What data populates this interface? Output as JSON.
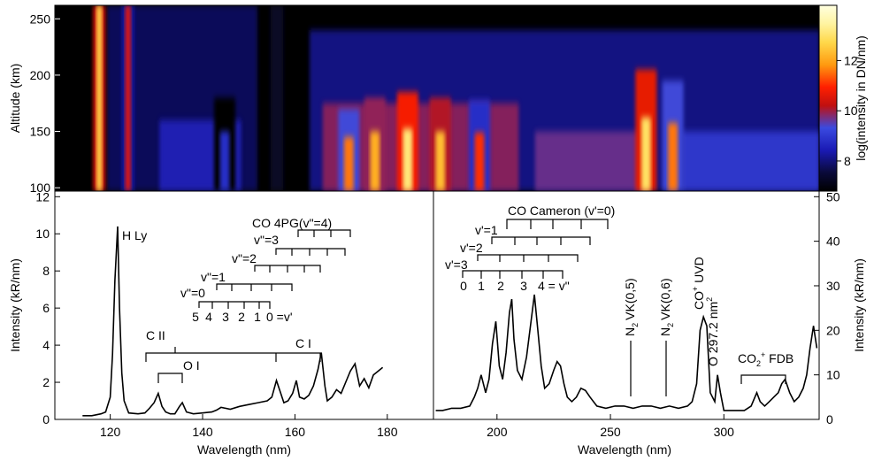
{
  "colors": {
    "background": "#ffffff",
    "axis": "#000000",
    "line": "#000000",
    "colormap": [
      "#000000",
      "#0a0a3a",
      "#1a1ab4",
      "#3a4ae0",
      "#c01010",
      "#ff2000",
      "#ff9a10",
      "#ffd84a",
      "#fff4a0",
      "#ffffe0"
    ]
  },
  "chart_data": [
    {
      "type": "heatmap",
      "panel": "top",
      "title": "",
      "xlabel": "",
      "ylabel": "Altitude (km)",
      "xlim": [
        108,
        342
      ],
      "ylim": [
        97,
        262
      ],
      "y_ticks": [
        "100",
        "150",
        "200",
        "250"
      ],
      "colorbar": {
        "label": "log(intensity in DN/nm)",
        "range": [
          6.8,
          14.2
        ],
        "ticks": [
          "8",
          "10",
          "12"
        ]
      },
      "features": [
        {
          "x": 121.6,
          "alt_top": 262,
          "peak": 12.5
        },
        {
          "x": 130.4,
          "alt_top": 262,
          "peak": 10.5
        },
        {
          "x": 160,
          "alt_top": 180,
          "peak": 8.8
        },
        {
          "x": 198,
          "alt_top": 170,
          "peak": 11.5
        },
        {
          "x": 206,
          "alt_top": 180,
          "peak": 12.0
        },
        {
          "x": 216,
          "alt_top": 185,
          "peak": 13.0
        },
        {
          "x": 226,
          "alt_top": 180,
          "peak": 12.2
        },
        {
          "x": 238,
          "alt_top": 178,
          "peak": 11.0
        },
        {
          "x": 289,
          "alt_top": 205,
          "peak": 12.8
        },
        {
          "x": 297.2,
          "alt_top": 195,
          "peak": 11.5
        }
      ]
    },
    {
      "type": "line",
      "panel": "bottom-left",
      "xlabel": "Wavelength (nm)",
      "ylabel": "Intensity (kR/nm)",
      "xlim": [
        108,
        190
      ],
      "ylim": [
        0,
        12.3
      ],
      "x_ticks": [
        "120",
        "140",
        "160",
        "180"
      ],
      "y_ticks": [
        "0",
        "2",
        "4",
        "6",
        "8",
        "10",
        "12"
      ],
      "x": [
        114,
        116,
        118,
        119,
        120,
        120.5,
        121,
        121.6,
        122,
        122.5,
        123,
        124,
        126,
        127.5,
        128.5,
        129.5,
        130.4,
        131.2,
        132,
        133,
        134,
        135,
        135.6,
        136.5,
        138,
        140,
        142,
        143,
        144,
        146,
        148,
        150,
        152,
        154,
        155,
        156,
        156.8,
        157.6,
        158.5,
        159.5,
        160.3,
        161,
        162,
        163,
        164,
        165,
        165.7,
        166.5,
        167,
        168,
        169,
        170,
        171,
        172,
        173,
        174,
        175,
        176,
        177,
        178,
        179
      ],
      "y": [
        0.2,
        0.2,
        0.3,
        0.4,
        1.2,
        3.5,
        7.5,
        10.4,
        6.0,
        2.5,
        1.0,
        0.35,
        0.3,
        0.35,
        0.6,
        0.9,
        1.4,
        0.7,
        0.4,
        0.3,
        0.3,
        0.7,
        0.9,
        0.4,
        0.3,
        0.35,
        0.4,
        0.5,
        0.65,
        0.55,
        0.7,
        0.8,
        0.9,
        1.0,
        1.2,
        2.1,
        1.5,
        0.9,
        1.0,
        1.4,
        2.1,
        1.2,
        1.1,
        1.3,
        1.8,
        2.7,
        3.6,
        1.8,
        1.0,
        1.2,
        1.6,
        1.4,
        2.0,
        2.6,
        3.0,
        1.8,
        2.2,
        1.7,
        2.4,
        2.6,
        2.8
      ],
      "annotations": [
        {
          "text": "H Ly",
          "x": 124,
          "y": 9.9
        },
        {
          "text": "C II",
          "x": 127.5,
          "y": 4.4
        },
        {
          "text": "O I",
          "x": 133.5,
          "y": 2.8
        },
        {
          "text": "C I",
          "x": 161,
          "y": 3.1
        }
      ],
      "co4pg": {
        "title": "CO 4PG(v\"=4)",
        "progressions": [
          "v\"=0",
          "v\"=1",
          "v\"=2",
          "v\"=3"
        ],
        "vprime_labels": [
          "5",
          "4",
          "3",
          "2",
          "1",
          "0 =v'"
        ]
      }
    },
    {
      "type": "line",
      "panel": "bottom-right",
      "xlabel": "Wavelength (nm)",
      "ylabel": "Intensity (kR/nm)",
      "xlim": [
        172,
        342
      ],
      "ylim": [
        0,
        51.25
      ],
      "x_ticks": [
        "200",
        "250",
        "300"
      ],
      "y_ticks": [
        "0",
        "10",
        "20",
        "30",
        "40",
        "50"
      ],
      "x": [
        173,
        176,
        180,
        184,
        188,
        190,
        191.5,
        193,
        195,
        196.5,
        198,
        199.5,
        201,
        202.5,
        204,
        205.5,
        206.5,
        207.5,
        209,
        211,
        213,
        215,
        216.5,
        218,
        219.5,
        221,
        223,
        225,
        226.5,
        228,
        229.5,
        231,
        233,
        235,
        237,
        239,
        241,
        244,
        248,
        252,
        256,
        260,
        264,
        268,
        272,
        276,
        280,
        284,
        286,
        288,
        289.5,
        291,
        292.5,
        294,
        296,
        297.2,
        298.5,
        300,
        303,
        306,
        309,
        312,
        314.5,
        316,
        318,
        320,
        322,
        324,
        325.5,
        327,
        329,
        331,
        333,
        335,
        336.5,
        338,
        339.5,
        341
      ],
      "y": [
        2,
        2,
        2.5,
        2.5,
        3,
        5,
        7,
        10,
        6,
        9,
        17,
        22,
        12,
        9,
        15,
        24,
        27,
        18,
        11,
        9,
        14,
        22,
        28,
        20,
        12,
        7,
        8,
        11,
        13,
        12,
        8,
        5,
        4,
        5,
        7,
        6.5,
        5,
        3,
        2.5,
        3,
        3,
        2.5,
        3,
        3,
        2.5,
        3,
        2.5,
        3,
        4,
        8,
        20,
        23,
        21,
        6,
        4,
        10,
        6,
        2,
        2,
        2,
        2,
        3,
        6,
        4,
        3,
        4,
        5,
        6,
        8,
        9,
        6,
        4,
        5,
        7,
        10,
        16,
        21,
        16
      ]
    }
  ],
  "annotations_right": {
    "cameron": "CO Cameron (v'=0)",
    "vprime_labels": [
      "v'=1",
      "v'=2",
      "v'=3"
    ],
    "vdouble_labels": [
      "0",
      "1",
      "2",
      "3",
      "4 = v\""
    ],
    "n2_05": "VK(0,5)",
    "n2_06": "VK(0,6)",
    "n2_label": "N",
    "n2_sub": "2",
    "co_plus_uvd": "CO",
    "co_plus_uvd_tail": " UVD",
    "co_plus_sup": "+",
    "o_line": "O 297.2 nm",
    "o_line_sup": "2",
    "fdb": "CO",
    "fdb_sub": "2",
    "fdb_sup": "+",
    "fdb_tail": " FDB"
  }
}
